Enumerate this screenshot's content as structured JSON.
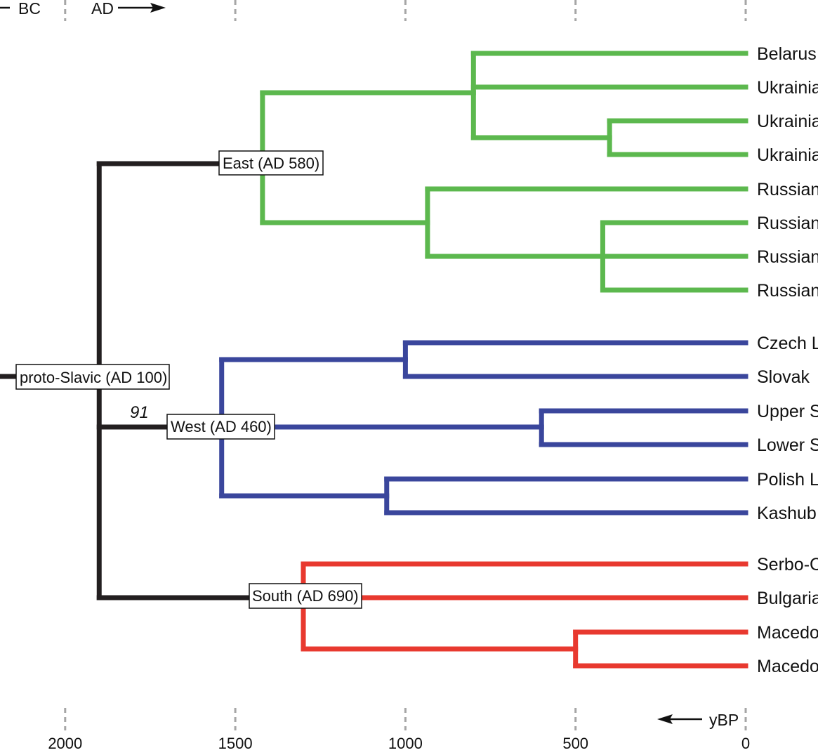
{
  "header": {
    "bc_label": "BC",
    "ad_label": "AD"
  },
  "axis": {
    "unit_label": "yBP",
    "ticks": [
      {
        "value": 2000,
        "label": "2000"
      },
      {
        "value": 1500,
        "label": "1500"
      },
      {
        "value": 1000,
        "label": "1000"
      },
      {
        "value": 500,
        "label": "500"
      },
      {
        "value": 0,
        "label": "0"
      }
    ]
  },
  "colors": {
    "root": "#231f20",
    "east": "#5cb84e",
    "west": "#3a469c",
    "south": "#e8392f",
    "gridline": "#a6a6a6"
  },
  "nodes": {
    "root": {
      "label": "proto-Slavic (AD 100)",
      "age": 1900
    },
    "east": {
      "label": "East (AD 580)",
      "age": 1420
    },
    "west": {
      "label": "West (AD 460)",
      "age": 1540
    },
    "south": {
      "label": "South (AD 690)",
      "age": 1310
    },
    "support_value": "91"
  },
  "leaves": [
    {
      "label": "Belarus",
      "group": "east"
    },
    {
      "label": "Ukrainia",
      "group": "east"
    },
    {
      "label": "Ukrainia",
      "group": "east"
    },
    {
      "label": "Ukrainia",
      "group": "east"
    },
    {
      "label": "Russian",
      "group": "east"
    },
    {
      "label": "Russian",
      "group": "east"
    },
    {
      "label": "Russian",
      "group": "east"
    },
    {
      "label": "Russian",
      "group": "east"
    },
    {
      "label": "Czech L",
      "group": "west"
    },
    {
      "label": "Slovak",
      "group": "west"
    },
    {
      "label": "Upper S",
      "group": "west"
    },
    {
      "label": "Lower S",
      "group": "west"
    },
    {
      "label": "Polish L",
      "group": "west"
    },
    {
      "label": "Kashub",
      "group": "west"
    },
    {
      "label": "Serbo-C",
      "group": "south"
    },
    {
      "label": "Bulgaria",
      "group": "south"
    },
    {
      "label": "Macedo",
      "group": "south"
    },
    {
      "label": "Macedo",
      "group": "south"
    }
  ],
  "internal_ages": {
    "east_a": 800,
    "east_a2": 400,
    "east_b": 935,
    "east_b2": 420,
    "west_a": 1000,
    "west_b": 600,
    "west_c": 1055,
    "south_a": 1300,
    "south_b": 500
  }
}
